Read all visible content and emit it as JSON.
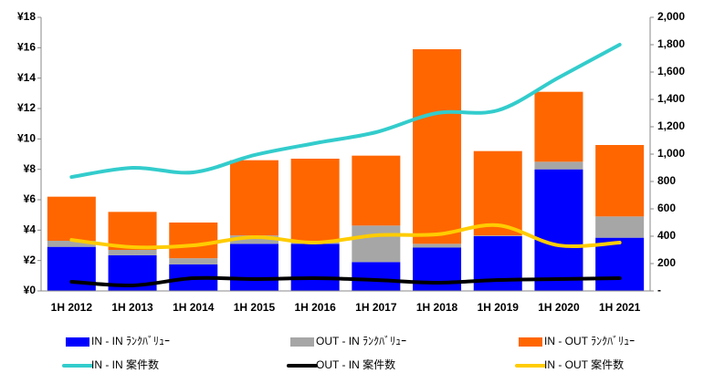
{
  "chart_data": {
    "type": "bar",
    "categories": [
      "1H 2012",
      "1H 2013",
      "1H 2014",
      "1H 2015",
      "1H 2016",
      "1H 2017",
      "1H 2018",
      "1H 2019",
      "1H 2020",
      "1H 2021"
    ],
    "series": [
      {
        "name": "IN - IN ﾗﾝｸﾊﾞﾘｭｰ",
        "type": "bar",
        "color": "#0000ff",
        "values": [
          2.9,
          2.35,
          1.75,
          3.1,
          3.1,
          1.9,
          2.85,
          3.6,
          8.0,
          3.5
        ]
      },
      {
        "name": "OUT - IN ﾗﾝｸﾊﾞﾘｭｰ",
        "type": "bar",
        "color": "#a6a6a6",
        "values": [
          0.4,
          0.35,
          0.4,
          0.55,
          0.1,
          2.4,
          0.25,
          0.05,
          0.5,
          1.4
        ]
      },
      {
        "name": "IN - OUT ﾗﾝｸﾊﾞﾘｭｰ",
        "type": "bar",
        "color": "#ff6600",
        "values": [
          2.9,
          2.5,
          2.35,
          4.95,
          5.5,
          4.6,
          12.8,
          5.55,
          4.6,
          4.7
        ]
      },
      {
        "name": "IN - IN 案件数",
        "type": "line",
        "axis": "y2",
        "color": "#33cccc",
        "values": [
          833,
          900,
          867,
          993,
          1080,
          1160,
          1300,
          1320,
          1560,
          1800
        ]
      },
      {
        "name": "OUT - IN 案件数",
        "type": "line",
        "axis": "y2",
        "color": "#000000",
        "values": [
          67,
          40,
          93,
          87,
          93,
          80,
          60,
          80,
          87,
          93
        ]
      },
      {
        "name": "IN - OUT 案件数",
        "type": "line",
        "axis": "y2",
        "color": "#ffcc00",
        "values": [
          373,
          320,
          333,
          393,
          353,
          407,
          413,
          480,
          333,
          353
        ]
      }
    ],
    "ylim": [
      0,
      18
    ],
    "yticks": [
      {
        "value": 0,
        "label": "¥0"
      },
      {
        "value": 2,
        "label": "¥2"
      },
      {
        "value": 4,
        "label": "¥4"
      },
      {
        "value": 6,
        "label": "¥6"
      },
      {
        "value": 8,
        "label": "¥8"
      },
      {
        "value": 10,
        "label": "¥10"
      },
      {
        "value": 12,
        "label": "¥12"
      },
      {
        "value": 14,
        "label": "¥14"
      },
      {
        "value": 16,
        "label": "¥16"
      },
      {
        "value": 18,
        "label": "¥18"
      }
    ],
    "y2lim": [
      0,
      2000
    ],
    "y2ticks": [
      {
        "value": 0,
        "label": "-"
      },
      200,
      400,
      600,
      800,
      {
        "value": 1000,
        "label": "1,000"
      },
      {
        "value": 1200,
        "label": "1,200"
      },
      {
        "value": 1400,
        "label": "1,400"
      },
      {
        "value": 1600,
        "label": "1,600"
      },
      {
        "value": 1800,
        "label": "1,800"
      },
      {
        "value": 2000,
        "label": "2,000"
      }
    ],
    "grid": false,
    "legend": "bottom"
  }
}
